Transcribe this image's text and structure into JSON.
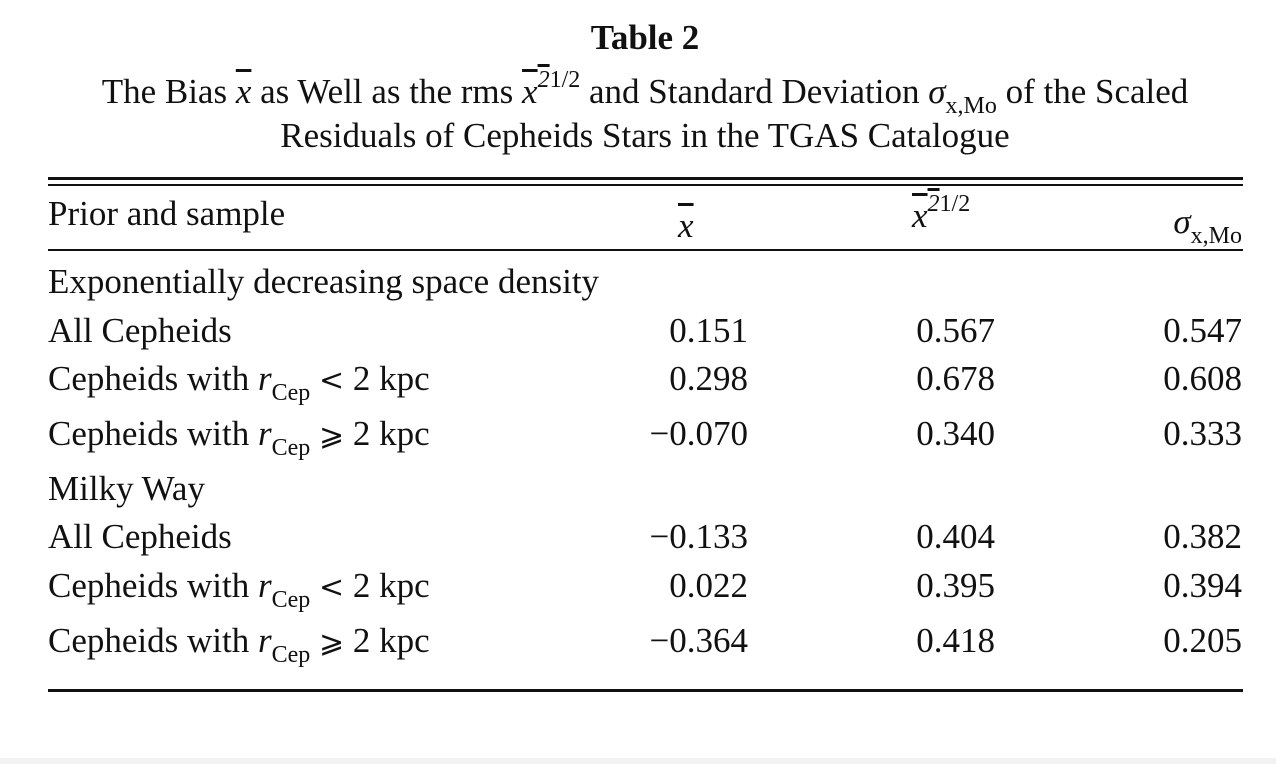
{
  "caption": {
    "title": "Table 2",
    "line1_a": "The Bias ",
    "line1_xbar": "x",
    "line1_b": " as Well as the rms ",
    "line1_rms_base": "x",
    "line1_rms_sq": "2",
    "line1_rms_exp": "1/2",
    "line1_c": " and Standard Deviation ",
    "line1_sigma": "σ",
    "line1_sigma_sub": "x,Mo",
    "line1_d": " of the Scaled",
    "line2": "Residuals of Cepheids Stars in the TGAS Catalogue"
  },
  "header": {
    "col0": "Prior and sample",
    "col1_symbol": "x",
    "col2_base": "x",
    "col2_sq": "2",
    "col2_exp": "1/2",
    "col3_sigma": "σ",
    "col3_sub": "x,Mo"
  },
  "groups": [
    {
      "title": "Exponentially decreasing space density",
      "rows": [
        {
          "pre": "All Cepheids",
          "r": "",
          "sub": "",
          "rel": "",
          "post": "",
          "xbar": "0.151",
          "rms": "0.567",
          "sigma": "0.547"
        },
        {
          "pre": "Cepheids with ",
          "r": "r",
          "sub": "Cep",
          "rel": "<",
          "post": " 2 kpc",
          "xbar": "0.298",
          "rms": "0.678",
          "sigma": "0.608"
        },
        {
          "pre": "Cepheids with ",
          "r": "r",
          "sub": "Cep",
          "rel": "⩾",
          "post": " 2 kpc",
          "xbar": "−0.070",
          "rms": "0.340",
          "sigma": "0.333"
        }
      ]
    },
    {
      "title": "Milky Way",
      "rows": [
        {
          "pre": "All Cepheids",
          "r": "",
          "sub": "",
          "rel": "",
          "post": "",
          "xbar": "−0.133",
          "rms": "0.404",
          "sigma": "0.382"
        },
        {
          "pre": "Cepheids with ",
          "r": "r",
          "sub": "Cep",
          "rel": "<",
          "post": " 2 kpc",
          "xbar": "0.022",
          "rms": "0.395",
          "sigma": "0.394"
        },
        {
          "pre": "Cepheids with ",
          "r": "r",
          "sub": "Cep",
          "rel": "⩾",
          "post": " 2 kpc",
          "xbar": "−0.364",
          "rms": "0.418",
          "sigma": "0.205"
        }
      ]
    }
  ]
}
